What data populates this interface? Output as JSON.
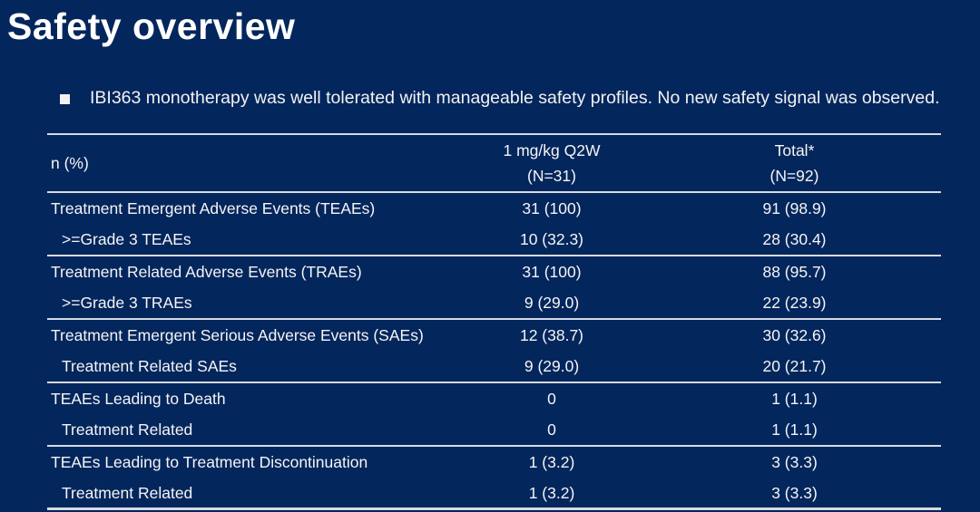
{
  "slide": {
    "title": "Safety overview",
    "bullet_text": "IBI363 monotherapy was well tolerated with manageable safety profiles. No new safety signal was observed."
  },
  "colors": {
    "background": "#03265c",
    "text": "#f5f5f5",
    "divider": "#d6dae2"
  },
  "table": {
    "header": {
      "row_label": "n (%)",
      "col_q2w_title": "1 mg/kg Q2W",
      "col_q2w_n": "(N=31)",
      "col_total_title": "Total*",
      "col_total_n": "(N=92)"
    },
    "rows": [
      {
        "label": "Treatment Emergent Adverse Events (TEAEs)",
        "q2w": "31 (100)",
        "total": "91 (98.9)"
      },
      {
        "label": ">=Grade 3 TEAEs",
        "q2w": "10 (32.3)",
        "total": "28 (30.4)"
      },
      {
        "label": "Treatment Related Adverse Events (TRAEs)",
        "q2w": "31 (100)",
        "total": "88 (95.7)"
      },
      {
        "label": ">=Grade 3 TRAEs",
        "q2w": "9 (29.0)",
        "total": "22 (23.9)"
      },
      {
        "label": "Treatment Emergent Serious Adverse Events (SAEs)",
        "q2w": "12 (38.7)",
        "total": "30 (32.6)"
      },
      {
        "label": "Treatment Related SAEs",
        "q2w": "9 (29.0)",
        "total": "20 (21.7)"
      },
      {
        "label": "TEAEs Leading to Death",
        "q2w": "0",
        "total": "1 (1.1)"
      },
      {
        "label": "Treatment Related",
        "q2w": "0",
        "total": "1 (1.1)"
      },
      {
        "label": "TEAEs Leading to Treatment Discontinuation",
        "q2w": "1 (3.2)",
        "total": "3 (3.3)"
      },
      {
        "label": "Treatment Related",
        "q2w": "1 (3.2)",
        "total": "3 (3.3)"
      }
    ]
  }
}
